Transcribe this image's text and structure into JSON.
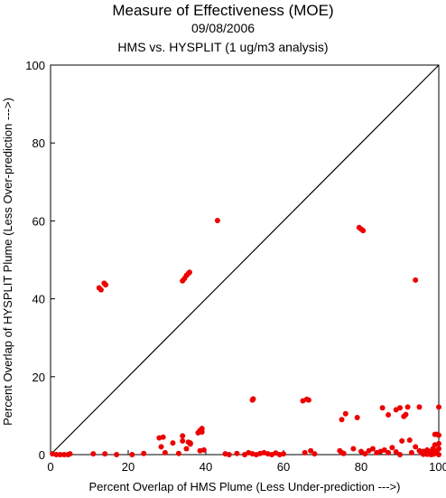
{
  "chart_data": {
    "type": "scatter",
    "title": "Measure of Effectiveness (MOE)",
    "subtitle": "09/08/2006",
    "subtitle2": "HMS vs. HYSPLIT  (1 ug/m3 analysis)",
    "xlabel": "Percent Overlap of HMS Plume (Less Under-prediction --->)",
    "ylabel": "Percent Overlap of HYSPLIT Plume (Less Over-prediction --->)",
    "xlim": [
      0,
      100
    ],
    "ylim": [
      0,
      100
    ],
    "xticks": [
      0,
      20,
      40,
      60,
      80,
      100
    ],
    "yticks": [
      0,
      20,
      40,
      60,
      80,
      100
    ],
    "reference_line": "y = x",
    "grid": false,
    "point_color": "#ee0000",
    "points": [
      [
        0.5,
        0.2
      ],
      [
        1.5,
        0
      ],
      [
        2.5,
        0
      ],
      [
        3.5,
        0
      ],
      [
        4.5,
        0
      ],
      [
        5,
        0.2
      ],
      [
        11,
        0.2
      ],
      [
        14,
        0.2
      ],
      [
        17,
        0
      ],
      [
        21,
        0
      ],
      [
        24,
        0.3
      ],
      [
        12.5,
        42.8
      ],
      [
        13,
        42.3
      ],
      [
        13.8,
        44
      ],
      [
        14.2,
        43.6
      ],
      [
        28,
        4.3
      ],
      [
        28.5,
        2
      ],
      [
        29,
        4.5
      ],
      [
        29.5,
        0.5
      ],
      [
        31.5,
        3
      ],
      [
        33,
        0.3
      ],
      [
        34,
        3.5
      ],
      [
        34,
        4.8
      ],
      [
        35,
        1.5
      ],
      [
        35.5,
        3.2
      ],
      [
        36,
        3
      ],
      [
        36,
        2.7
      ],
      [
        38,
        5.6
      ],
      [
        38.5,
        6.2
      ],
      [
        39,
        5.8
      ],
      [
        39,
        6.7
      ],
      [
        38.5,
        1
      ],
      [
        39.5,
        1.2
      ],
      [
        34,
        44.6
      ],
      [
        34.5,
        45.2
      ],
      [
        35,
        46
      ],
      [
        35.5,
        46.5
      ],
      [
        35.8,
        46.8
      ],
      [
        45,
        0.2
      ],
      [
        46,
        0
      ],
      [
        48,
        0.3
      ],
      [
        50,
        0
      ],
      [
        51,
        0.5
      ],
      [
        52,
        0.2
      ],
      [
        53,
        0
      ],
      [
        54,
        0.3
      ],
      [
        55,
        0.5
      ],
      [
        56,
        0.2
      ],
      [
        57,
        0
      ],
      [
        58,
        0.4
      ],
      [
        59,
        0
      ],
      [
        60,
        0.2
      ],
      [
        52,
        14
      ],
      [
        52.2,
        14.3
      ],
      [
        65,
        13.8
      ],
      [
        66,
        14.2
      ],
      [
        66.5,
        14
      ],
      [
        65.5,
        0.5
      ],
      [
        67,
        1
      ],
      [
        68,
        0.2
      ],
      [
        79.5,
        58.3
      ],
      [
        80,
        57.9
      ],
      [
        80.5,
        57.5
      ],
      [
        43,
        60.1
      ],
      [
        94,
        44.8
      ],
      [
        74.5,
        1
      ],
      [
        75,
        0.5
      ],
      [
        75.5,
        0.3
      ],
      [
        75,
        9
      ],
      [
        76,
        10.5
      ],
      [
        78,
        1.5
      ],
      [
        79,
        9.5
      ],
      [
        80,
        0.8
      ],
      [
        81,
        0.2
      ],
      [
        82,
        1
      ],
      [
        83,
        1.5
      ],
      [
        84,
        0.5
      ],
      [
        85,
        0.8
      ],
      [
        86,
        1.2
      ],
      [
        87,
        0.5
      ],
      [
        88,
        1.8
      ],
      [
        89,
        0.7
      ],
      [
        90,
        0
      ],
      [
        85.5,
        12
      ],
      [
        87,
        10.2
      ],
      [
        89,
        11.5
      ],
      [
        90,
        12
      ],
      [
        90.5,
        3.5
      ],
      [
        91,
        9.8
      ],
      [
        91.5,
        10.3
      ],
      [
        92,
        12.2
      ],
      [
        92.5,
        3.7
      ],
      [
        93,
        0.5
      ],
      [
        94,
        2
      ],
      [
        95,
        12.2
      ],
      [
        95,
        1
      ],
      [
        95.5,
        0.5
      ],
      [
        96,
        0.8
      ],
      [
        96.5,
        0.2
      ],
      [
        97,
        1.2
      ],
      [
        97.5,
        0.5
      ],
      [
        98,
        0
      ],
      [
        98,
        0.8
      ],
      [
        98.5,
        1.5
      ],
      [
        99,
        0.3
      ],
      [
        99,
        2.5
      ],
      [
        99.5,
        1
      ],
      [
        99.5,
        5.2
      ],
      [
        100,
        0
      ],
      [
        100,
        1.5
      ],
      [
        100,
        2.8
      ],
      [
        100,
        5
      ],
      [
        100,
        12.2
      ],
      [
        99,
        5.2
      ],
      [
        98.5,
        0.1
      ],
      [
        97,
        0.1
      ],
      [
        96,
        0.1
      ]
    ]
  }
}
